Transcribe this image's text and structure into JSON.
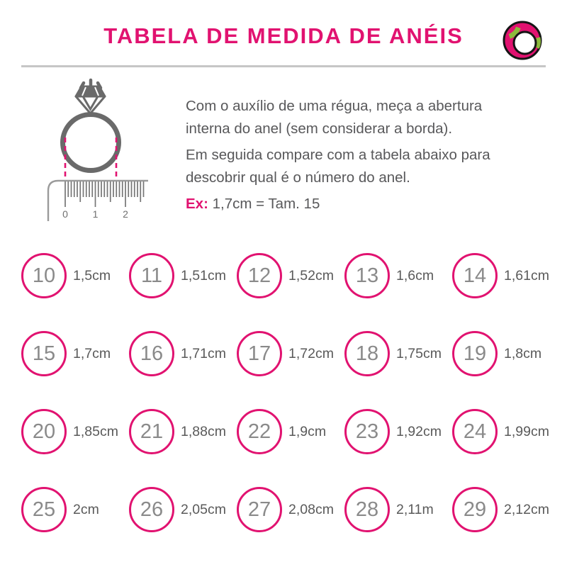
{
  "page": {
    "title": "TABELA DE MEDIDA DE ANÉIS"
  },
  "colors": {
    "pink": "#e11270",
    "green": "#8cba3c",
    "text_gray": "#58585a",
    "ring_gray": "#6a6a6a",
    "divider_gray": "#c6c6c6"
  },
  "instructions": {
    "paragraph1": "Com o auxílio de uma régua, meça a abertura interna do anel (sem considerar a borda).",
    "paragraph2": "Em seguida compare com a tabela abaixo para descobrir qual é o número do anel.",
    "example_label": "Ex:",
    "example_value": "1,7cm = Tam. 15"
  },
  "ruler": {
    "ticks": [
      "0",
      "1",
      "2"
    ]
  },
  "sizes": [
    {
      "num": "10",
      "label": "1,5cm"
    },
    {
      "num": "11",
      "label": "1,51cm"
    },
    {
      "num": "12",
      "label": "1,52cm"
    },
    {
      "num": "13",
      "label": "1,6cm"
    },
    {
      "num": "14",
      "label": "1,61cm"
    },
    {
      "num": "15",
      "label": "1,7cm"
    },
    {
      "num": "16",
      "label": "1,71cm"
    },
    {
      "num": "17",
      "label": "1,72cm"
    },
    {
      "num": "18",
      "label": "1,75cm"
    },
    {
      "num": "19",
      "label": "1,8cm"
    },
    {
      "num": "20",
      "label": "1,85cm"
    },
    {
      "num": "21",
      "label": "1,88cm"
    },
    {
      "num": "22",
      "label": "1,9cm"
    },
    {
      "num": "23",
      "label": "1,92cm"
    },
    {
      "num": "24",
      "label": "1,99cm"
    },
    {
      "num": "25",
      "label": "2cm"
    },
    {
      "num": "26",
      "label": "2,05cm"
    },
    {
      "num": "27",
      "label": "2,08cm"
    },
    {
      "num": "28",
      "label": "2,11m"
    },
    {
      "num": "29",
      "label": "2,12cm"
    }
  ]
}
